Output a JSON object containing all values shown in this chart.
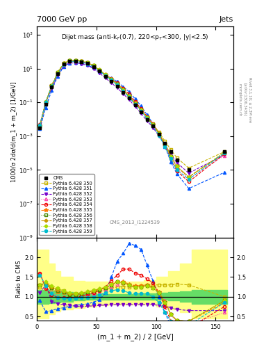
{
  "title_left": "7000 GeV pp",
  "title_right": "Jets",
  "annotation": "Dijet mass (anti-k$_T$(0.7), 220<p$_T$<300, |y|<2.5)",
  "cms_watermark": "CMS_2013_I1224539",
  "xlabel": "(m_1 + m_2) / 2 [GeV]",
  "ylabel_main": "1000/σ 2dσ/d(m_1 + m_2) [1/GeV]",
  "ylabel_ratio": "Ratio to CMS",
  "right_label1": "Rivet 3.1.10; ≥ 2.3M eve",
  "right_label2": "[arXiv:1306.3436]",
  "xdata": [
    2.5,
    7.5,
    12.5,
    17.5,
    22.5,
    27.5,
    32.5,
    37.5,
    42.5,
    47.5,
    52.5,
    57.5,
    62.5,
    67.5,
    72.5,
    77.5,
    82.5,
    87.5,
    92.5,
    97.5,
    102.5,
    107.5,
    112.5,
    117.5,
    127.5,
    157.5
  ],
  "cms_data": [
    0.003,
    0.08,
    0.8,
    5,
    18,
    28,
    28,
    26,
    20,
    13,
    7,
    3.5,
    1.8,
    0.9,
    0.4,
    0.18,
    0.07,
    0.028,
    0.01,
    0.004,
    0.0013,
    0.0004,
    0.00012,
    4e-05,
    1e-05,
    0.00012
  ],
  "cms_errors": [
    0.0003,
    0.005,
    0.04,
    0.25,
    0.8,
    1.2,
    1.2,
    1.1,
    0.9,
    0.6,
    0.3,
    0.15,
    0.08,
    0.04,
    0.018,
    0.008,
    0.003,
    0.0012,
    0.0005,
    0.00018,
    6e-05,
    2e-05,
    6e-06,
    2e-06,
    5e-07,
    1e-05
  ],
  "series": [
    {
      "label": "Pythia 6.428 350",
      "color": "#c8b400",
      "marker": "s",
      "markersize": 3,
      "linestyle": "--",
      "linewidth": 0.8,
      "markerfacecolor": "none",
      "ratio": [
        1.25,
        1.3,
        1.25,
        1.2,
        1.15,
        1.08,
        1.08,
        1.08,
        1.1,
        1.12,
        1.15,
        1.18,
        1.22,
        1.25,
        1.25,
        1.25,
        1.25,
        1.28,
        1.3,
        1.3,
        1.3,
        1.3,
        1.3,
        1.32,
        1.3,
        1.0
      ]
    },
    {
      "label": "Pythia 6.428 351",
      "color": "#0055ff",
      "marker": "^",
      "markersize": 3,
      "linestyle": "--",
      "linewidth": 0.8,
      "markerfacecolor": "#0055ff",
      "ratio": [
        0.9,
        0.62,
        0.65,
        0.7,
        0.72,
        0.76,
        0.78,
        0.8,
        0.82,
        0.86,
        0.92,
        1.1,
        1.5,
        1.9,
        2.1,
        2.35,
        2.3,
        2.2,
        1.8,
        1.4,
        1.0,
        0.6,
        0.25,
        0.15,
        0.08,
        0.06
      ]
    },
    {
      "label": "Pythia 6.428 352",
      "color": "#7700cc",
      "marker": "v",
      "markersize": 3,
      "linestyle": "--",
      "linewidth": 0.8,
      "markerfacecolor": "#7700cc",
      "ratio": [
        1.1,
        1.3,
        0.88,
        0.82,
        0.8,
        0.78,
        0.76,
        0.75,
        0.76,
        0.77,
        0.78,
        0.79,
        0.8,
        0.8,
        0.8,
        0.8,
        0.8,
        0.8,
        0.8,
        0.8,
        0.78,
        0.76,
        0.72,
        0.68,
        0.65,
        0.65
      ]
    },
    {
      "label": "Pythia 6.428 353",
      "color": "#ff44aa",
      "marker": "^",
      "markersize": 3,
      "linestyle": ":",
      "linewidth": 0.8,
      "markerfacecolor": "none",
      "ratio": [
        1.6,
        1.25,
        1.1,
        1.0,
        0.98,
        0.97,
        0.98,
        1.0,
        1.05,
        1.08,
        1.12,
        1.18,
        1.25,
        1.32,
        1.35,
        1.3,
        1.28,
        1.28,
        1.3,
        1.25,
        1.1,
        0.9,
        0.55,
        0.35,
        0.3,
        0.6
      ]
    },
    {
      "label": "Pythia 6.428 354",
      "color": "#ee0000",
      "marker": "o",
      "markersize": 3,
      "linestyle": "--",
      "linewidth": 0.8,
      "markerfacecolor": "none",
      "ratio": [
        1.6,
        1.2,
        1.05,
        0.98,
        0.97,
        0.97,
        0.98,
        1.02,
        1.06,
        1.1,
        1.15,
        1.25,
        1.4,
        1.55,
        1.7,
        1.7,
        1.6,
        1.55,
        1.45,
        1.35,
        1.1,
        0.75,
        0.38,
        0.22,
        0.2,
        0.75
      ]
    },
    {
      "label": "Pythia 6.428 355",
      "color": "#ff7700",
      "marker": "*",
      "markersize": 4,
      "linestyle": "--",
      "linewidth": 0.8,
      "markerfacecolor": "#ff7700",
      "ratio": [
        1.3,
        1.3,
        1.2,
        1.12,
        1.1,
        1.05,
        1.05,
        1.08,
        1.12,
        1.15,
        1.18,
        1.22,
        1.3,
        1.38,
        1.38,
        1.32,
        1.28,
        1.28,
        1.3,
        1.25,
        1.12,
        0.88,
        0.55,
        0.4,
        0.38,
        0.85
      ]
    },
    {
      "label": "Pythia 6.428 356",
      "color": "#448800",
      "marker": "s",
      "markersize": 3,
      "linestyle": ":",
      "linewidth": 0.8,
      "markerfacecolor": "none",
      "ratio": [
        1.3,
        1.3,
        1.22,
        1.15,
        1.12,
        1.05,
        1.05,
        1.08,
        1.12,
        1.15,
        1.18,
        1.22,
        1.3,
        1.38,
        1.35,
        1.3,
        1.25,
        1.25,
        1.28,
        1.22,
        1.1,
        0.85,
        0.55,
        0.4,
        0.38,
        0.9
      ]
    },
    {
      "label": "Pythia 6.428 357",
      "color": "#cc9900",
      "marker": "D",
      "markersize": 2.5,
      "linestyle": "-.",
      "linewidth": 0.8,
      "markerfacecolor": "#cc9900",
      "ratio": [
        1.3,
        1.35,
        1.25,
        1.18,
        1.14,
        1.08,
        1.07,
        1.1,
        1.13,
        1.16,
        1.2,
        1.24,
        1.32,
        1.38,
        1.35,
        1.3,
        1.25,
        1.25,
        1.28,
        1.22,
        1.1,
        0.85,
        0.55,
        0.4,
        0.38,
        0.9
      ]
    },
    {
      "label": "Pythia 6.428 358",
      "color": "#aadd00",
      "marker": "D",
      "markersize": 2.5,
      "linestyle": ":",
      "linewidth": 0.8,
      "markerfacecolor": "#aadd00",
      "ratio": [
        1.3,
        1.38,
        1.28,
        1.22,
        1.16,
        1.1,
        1.08,
        1.1,
        1.13,
        1.17,
        1.2,
        1.25,
        1.32,
        1.38,
        1.36,
        1.3,
        1.25,
        1.25,
        1.28,
        1.22,
        1.1,
        0.85,
        0.55,
        0.4,
        0.38,
        0.9
      ]
    },
    {
      "label": "Pythia 6.428 359",
      "color": "#00bbcc",
      "marker": "o",
      "markersize": 3,
      "linestyle": "--",
      "linewidth": 0.8,
      "markerfacecolor": "#00bbcc",
      "ratio": [
        1.55,
        1.28,
        1.08,
        0.98,
        0.96,
        0.95,
        0.96,
        0.97,
        0.98,
        1.0,
        1.05,
        1.1,
        1.15,
        1.18,
        1.15,
        1.1,
        1.08,
        1.08,
        1.08,
        1.0,
        0.85,
        0.6,
        0.38,
        0.25,
        0.28,
        0.85
      ]
    }
  ],
  "yellow_band": {
    "edges": [
      0,
      5,
      10,
      15,
      20,
      30,
      40,
      50,
      60,
      70,
      80,
      90,
      100,
      110,
      120,
      130,
      160
    ],
    "lo": [
      0.45,
      0.45,
      0.55,
      0.62,
      0.68,
      0.72,
      0.75,
      0.78,
      0.8,
      0.8,
      0.8,
      0.8,
      0.75,
      0.68,
      0.6,
      0.45,
      0.45
    ],
    "hi": [
      2.2,
      2.2,
      1.85,
      1.65,
      1.5,
      1.4,
      1.38,
      1.38,
      1.38,
      1.38,
      1.38,
      1.42,
      1.5,
      1.65,
      1.85,
      2.2,
      2.2
    ]
  },
  "green_band": {
    "edges": [
      0,
      5,
      10,
      15,
      20,
      30,
      40,
      50,
      60,
      70,
      80,
      90,
      100,
      110,
      120,
      130,
      160
    ],
    "lo": [
      0.82,
      0.82,
      0.84,
      0.86,
      0.88,
      0.9,
      0.92,
      0.93,
      0.93,
      0.93,
      0.93,
      0.93,
      0.92,
      0.9,
      0.88,
      0.82,
      0.82
    ],
    "hi": [
      1.18,
      1.18,
      1.16,
      1.14,
      1.12,
      1.1,
      1.08,
      1.07,
      1.07,
      1.07,
      1.07,
      1.08,
      1.1,
      1.12,
      1.14,
      1.18,
      1.18
    ]
  },
  "ratio_ylim": [
    0.4,
    2.5
  ],
  "ratio_yticks": [
    0.5,
    1.0,
    1.5,
    2.0
  ],
  "xlim": [
    0,
    165
  ],
  "xticks": [
    0,
    50,
    100,
    150
  ],
  "main_ylim_lo": 1e-09,
  "main_ylim_hi": 3000.0,
  "background_color": "#ffffff"
}
